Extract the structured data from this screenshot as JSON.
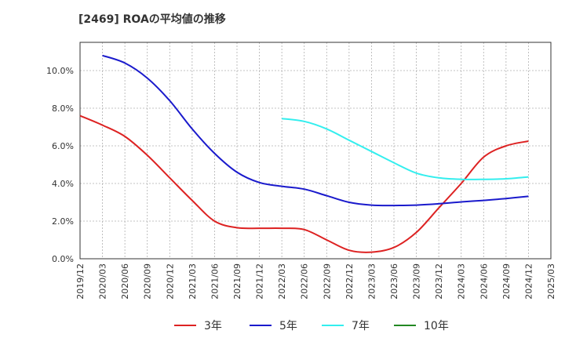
{
  "chart_data": {
    "type": "line",
    "title": "[2469]  ROAの平均値の推移",
    "xlabel": "",
    "ylabel": "",
    "ylim": [
      0,
      11.5
    ],
    "grid": true,
    "legend_position": "bottom",
    "x": [
      "2019/12",
      "2020/03",
      "2020/06",
      "2020/09",
      "2020/12",
      "2021/03",
      "2021/06",
      "2021/09",
      "2021/12",
      "2022/03",
      "2022/06",
      "2022/09",
      "2022/12",
      "2023/03",
      "2023/06",
      "2023/09",
      "2023/12",
      "2024/03",
      "2024/06",
      "2024/09",
      "2024/12",
      "2025/03"
    ],
    "y_ticks": [
      "0.0%",
      "2.0%",
      "4.0%",
      "6.0%",
      "8.0%",
      "10.0%"
    ],
    "y_tick_values": [
      0,
      2,
      4,
      6,
      8,
      10
    ],
    "series": [
      {
        "name": "3年",
        "color": "#dd2222",
        "values": [
          7.6,
          7.1,
          6.5,
          5.5,
          4.3,
          3.1,
          2.0,
          1.65,
          1.62,
          1.62,
          1.55,
          1.0,
          0.45,
          0.35,
          0.6,
          1.4,
          2.7,
          4.0,
          5.4,
          6.0,
          6.25,
          null
        ]
      },
      {
        "name": "5年",
        "color": "#1a1acc",
        "values": [
          null,
          10.8,
          10.4,
          9.6,
          8.4,
          6.9,
          5.6,
          4.6,
          4.05,
          3.85,
          3.7,
          3.35,
          3.0,
          2.85,
          2.83,
          2.85,
          2.92,
          3.02,
          3.1,
          3.2,
          3.32,
          null
        ]
      },
      {
        "name": "7年",
        "color": "#33eeee",
        "values": [
          null,
          null,
          null,
          null,
          null,
          null,
          null,
          null,
          null,
          7.45,
          7.3,
          6.9,
          6.3,
          5.7,
          5.1,
          4.55,
          4.3,
          4.22,
          4.22,
          4.25,
          4.35,
          null
        ]
      },
      {
        "name": "10年",
        "color": "#228822",
        "values": [
          null,
          null,
          null,
          null,
          null,
          null,
          null,
          null,
          null,
          null,
          null,
          null,
          null,
          null,
          null,
          null,
          null,
          null,
          null,
          null,
          null,
          null
        ]
      }
    ]
  }
}
